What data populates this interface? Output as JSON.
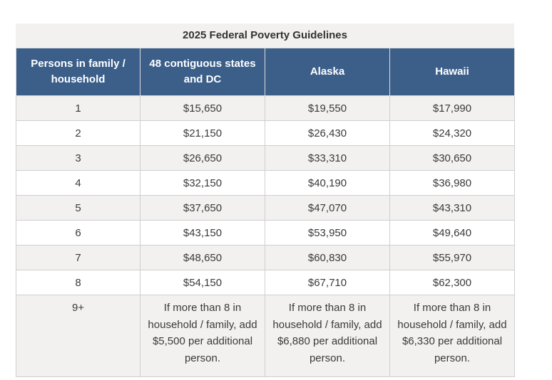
{
  "table": {
    "title": "2025 Federal Poverty Guidelines",
    "headers": [
      "Persons in family / household",
      "48 contiguous states and DC",
      "Alaska",
      "Hawaii"
    ],
    "rows": [
      [
        "1",
        "$15,650",
        "$19,550",
        "$17,990"
      ],
      [
        "2",
        "$21,150",
        "$26,430",
        "$24,320"
      ],
      [
        "3",
        "$26,650",
        "$33,310",
        "$30,650"
      ],
      [
        "4",
        "$32,150",
        "$40,190",
        "$36,980"
      ],
      [
        "5",
        "$37,650",
        "$47,070",
        "$43,310"
      ],
      [
        "6",
        "$43,150",
        "$53,950",
        "$49,640"
      ],
      [
        "7",
        "$48,650",
        "$60,830",
        "$55,970"
      ],
      [
        "8",
        "$54,150",
        "$67,710",
        "$62,300"
      ],
      [
        "9+",
        "If more than 8 in household / family, add $5,500 per additional person.",
        "If more than 8 in household / family, add $6,880 per additional person.",
        "If more than 8 in household / family, add $6,330 per additional person."
      ]
    ]
  },
  "colors": {
    "header_bg": "#3c5f8a",
    "stripe_bg": "#f2f1ef",
    "border": "#cfcfcf"
  }
}
